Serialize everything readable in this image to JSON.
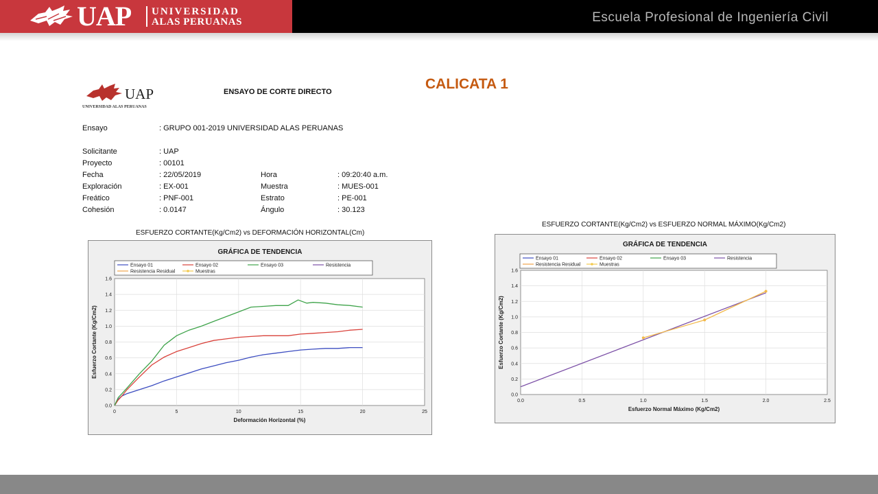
{
  "header": {
    "brand_short": "UAP",
    "brand_line1": "UNIVERSIDAD",
    "brand_line2": "ALAS PERUANAS",
    "school": "Escuela Profesional de Ingeniería Civil"
  },
  "slide_title": "CALICATA 1",
  "report": {
    "logo_text": "UAP",
    "logo_subtext": "UNIVERSIDAD ALAS PERUANAS",
    "title": "ENSAYO DE CORTE DIRECTO",
    "fields": {
      "ensayo": {
        "label": "Ensayo",
        "value": ": GRUPO 001-2019 UNIVERSIDAD ALAS PERUANAS"
      },
      "solicitante": {
        "label": "Solicitante",
        "value": ":  UAP"
      },
      "proyecto": {
        "label": "Proyecto",
        "value": ": 00101"
      },
      "fecha": {
        "label": "Fecha",
        "value": ": 22/05/2019"
      },
      "hora": {
        "label": "Hora",
        "value": ": 09:20:40 a.m."
      },
      "exploracion": {
        "label": "Exploración",
        "value": ": EX-001"
      },
      "muestra": {
        "label": "Muestra",
        "value": ": MUES-001"
      },
      "freatico": {
        "label": "Freático",
        "value": ": PNF-001"
      },
      "estrato": {
        "label": "Estrato",
        "value": ": PE-001"
      },
      "cohesion": {
        "label": "Cohesión",
        "value": ": 0.0147"
      },
      "angulo": {
        "label": "Ángulo",
        "value": ": 30.123"
      }
    }
  },
  "chart_data": [
    {
      "type": "line",
      "caption": "ESFUERZO CORTANTE(Kg/Cm2) vs DEFORMACIÓN HORIZONTAL(Cm)",
      "title": "GRÁFICA DE TENDENCIA",
      "xlabel": "Deformación Horizontal (%)",
      "ylabel": "Esfuerzo Cortante (Kg/Cm2)",
      "xlim": [
        0,
        25
      ],
      "ylim": [
        0,
        1.6
      ],
      "xticks": [
        "0",
        "5",
        "10",
        "15",
        "20",
        "25"
      ],
      "yticks": [
        "0.0",
        "0.2",
        "0.4",
        "0.6",
        "0.8",
        "1.0",
        "1.2",
        "1.4",
        "1.6"
      ],
      "grid": true,
      "legend_position": "top",
      "legend": [
        "Ensayo 01",
        "Ensayo 02",
        "Ensayo 03",
        "Resistencia",
        "Resistencia Residual",
        "Muestras"
      ],
      "series": [
        {
          "name": "Ensayo 01",
          "color": "#3b4cc0",
          "x": [
            0,
            0.3,
            0.6,
            1,
            2,
            3,
            4,
            5,
            6,
            7,
            8,
            9,
            10,
            11,
            12,
            13,
            14,
            15,
            16,
            17,
            18,
            19,
            20
          ],
          "y": [
            0,
            0.08,
            0.12,
            0.15,
            0.2,
            0.25,
            0.31,
            0.36,
            0.41,
            0.46,
            0.5,
            0.54,
            0.57,
            0.61,
            0.64,
            0.66,
            0.68,
            0.7,
            0.71,
            0.72,
            0.72,
            0.73,
            0.73
          ]
        },
        {
          "name": "Ensayo 02",
          "color": "#d9413a",
          "x": [
            0,
            0.3,
            0.6,
            1,
            2,
            3,
            4,
            5,
            6,
            7,
            8,
            9,
            10,
            11,
            12,
            13,
            14,
            15,
            16,
            17,
            18,
            19,
            20
          ],
          "y": [
            0,
            0.07,
            0.12,
            0.2,
            0.36,
            0.51,
            0.61,
            0.68,
            0.73,
            0.78,
            0.82,
            0.84,
            0.86,
            0.87,
            0.88,
            0.88,
            0.88,
            0.9,
            0.91,
            0.92,
            0.93,
            0.95,
            0.96
          ]
        },
        {
          "name": "Ensayo 03",
          "color": "#3ea34a",
          "x": [
            0,
            0.3,
            0.6,
            1,
            2,
            3,
            4,
            5,
            6,
            7,
            8,
            9,
            10,
            11,
            12,
            13,
            14,
            14.8,
            15.5,
            16,
            17,
            18,
            19,
            20
          ],
          "y": [
            0,
            0.1,
            0.15,
            0.22,
            0.4,
            0.56,
            0.76,
            0.88,
            0.95,
            1.0,
            1.06,
            1.12,
            1.18,
            1.24,
            1.25,
            1.26,
            1.26,
            1.33,
            1.29,
            1.3,
            1.29,
            1.27,
            1.26,
            1.24
          ]
        }
      ]
    },
    {
      "type": "line",
      "caption": "ESFUERZO CORTANTE(Kg/Cm2) vs ESFUERZO NORMAL MÁXIMO(Kg/Cm2)",
      "title": "GRÁFICA DE TENDENCIA",
      "xlabel": "Esfuerzo Normal Máximo (Kg/Cm2)",
      "ylabel": "Esfuerzo Cortante (Kg/Cm2)",
      "xlim": [
        0,
        2.5
      ],
      "ylim": [
        0,
        1.6
      ],
      "xticks": [
        "0.0",
        "0.5",
        "1.0",
        "1.5",
        "2.0",
        "2.5"
      ],
      "yticks": [
        "0.0",
        "0.2",
        "0.4",
        "0.6",
        "0.8",
        "1.0",
        "1.2",
        "1.4",
        "1.6"
      ],
      "grid": true,
      "legend_position": "top",
      "legend": [
        "Ensayo 01",
        "Ensayo 02",
        "Ensayo 03",
        "Resistencia",
        "Resistencia Residual",
        "Muestras"
      ],
      "series": [
        {
          "name": "Resistencia",
          "color": "#7b4fa6",
          "x": [
            0,
            2.0
          ],
          "y": [
            0.1,
            1.31
          ]
        },
        {
          "name": "Muestras",
          "color": "#f2b94a",
          "markers": true,
          "x": [
            1.0,
            1.5,
            2.0
          ],
          "y": [
            0.73,
            0.96,
            1.33
          ]
        }
      ]
    }
  ],
  "legend_colors": {
    "Ensayo 01": "#3b4cc0",
    "Ensayo 02": "#d9413a",
    "Ensayo 03": "#3ea34a",
    "Resistencia": "#7b4fa6",
    "Resistencia Residual": "#f0a24a",
    "Muestras": "#f2c94c"
  }
}
